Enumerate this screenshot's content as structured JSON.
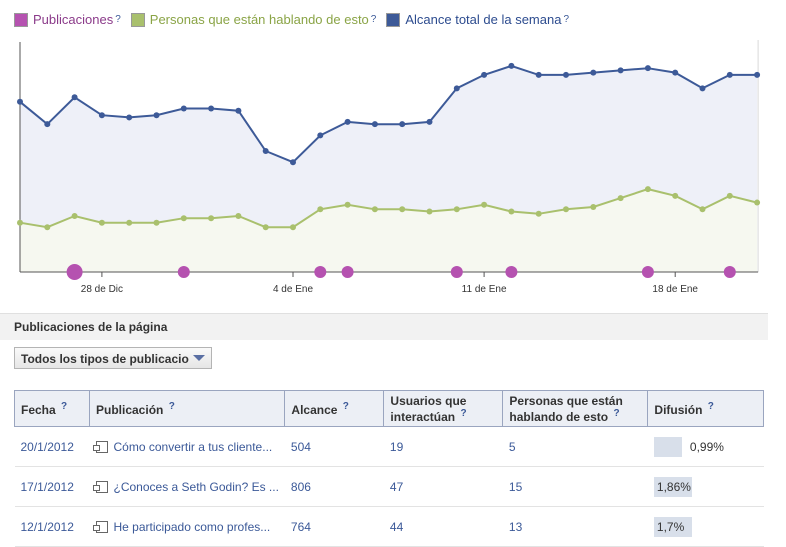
{
  "legend": [
    {
      "label": "Publicaciones",
      "color": "#b552b0",
      "text_color": "#8b3b8a"
    },
    {
      "label": "Personas que están hablando de esto",
      "color": "#a9c06d",
      "text_color": "#8aa446"
    },
    {
      "label": "Alcance total de la semana",
      "color": "#3d5a98",
      "text_color": "#2d4c8f"
    }
  ],
  "help_mark": "?",
  "chart_data": {
    "type": "line",
    "x_ticks": [
      "28 de Dic",
      "4 de Ene",
      "11 de Ene",
      "18 de Ene"
    ],
    "series": [
      {
        "name": "Alcance total de la semana",
        "color": "#3d5a98",
        "values": [
          0.76,
          0.66,
          0.78,
          0.7,
          0.69,
          0.7,
          0.73,
          0.73,
          0.72,
          0.54,
          0.49,
          0.61,
          0.67,
          0.66,
          0.66,
          0.67,
          0.82,
          0.88,
          0.92,
          0.88,
          0.88,
          0.89,
          0.9,
          0.91,
          0.89,
          0.82,
          0.88,
          0.88
        ]
      },
      {
        "name": "Personas que están hablando de esto",
        "color": "#a9c06d",
        "values": [
          0.22,
          0.2,
          0.25,
          0.22,
          0.22,
          0.22,
          0.24,
          0.24,
          0.25,
          0.2,
          0.2,
          0.28,
          0.3,
          0.28,
          0.28,
          0.27,
          0.28,
          0.3,
          0.27,
          0.26,
          0.28,
          0.29,
          0.33,
          0.37,
          0.34,
          0.28,
          0.34,
          0.31
        ]
      },
      {
        "name": "Publicaciones",
        "color": "#b552b0",
        "points": [
          {
            "i": 2,
            "size": "large"
          },
          {
            "i": 6,
            "size": "small"
          },
          {
            "i": 11,
            "size": "small"
          },
          {
            "i": 12,
            "size": "small"
          },
          {
            "i": 16,
            "size": "small"
          },
          {
            "i": 18,
            "size": "small"
          },
          {
            "i": 23,
            "size": "small"
          },
          {
            "i": 26,
            "size": "small"
          }
        ]
      }
    ],
    "grid": false
  },
  "section": {
    "title": "Publicaciones de la página"
  },
  "filter": {
    "selected": "Todos los tipos de publicacio"
  },
  "table": {
    "headers": [
      {
        "label": "Fecha",
        "help": "?"
      },
      {
        "label": "Publicación",
        "help": "?"
      },
      {
        "label": "Alcance",
        "help": "?"
      },
      {
        "label": "Usuarios que",
        "label2": "interactúan",
        "help": "?"
      },
      {
        "label": "Personas que están",
        "label2": "hablando de esto",
        "help": "?"
      },
      {
        "label": "Difusión",
        "help": "?"
      }
    ],
    "rows": [
      {
        "date": "20/1/2012",
        "post": "Cómo convertir a tus cliente...",
        "reach": "504",
        "engaged": "19",
        "talking": "5",
        "viral": "0,99%",
        "viral_fraction": 0.0099
      },
      {
        "date": "17/1/2012",
        "post": "¿Conoces a Seth Godin? Es ...",
        "reach": "806",
        "engaged": "47",
        "talking": "15",
        "viral": "1,86%",
        "viral_fraction": 0.0186
      },
      {
        "date": "12/1/2012",
        "post": "He participado como profes...",
        "reach": "764",
        "engaged": "44",
        "talking": "13",
        "viral": "1,7%",
        "viral_fraction": 0.017
      }
    ]
  }
}
